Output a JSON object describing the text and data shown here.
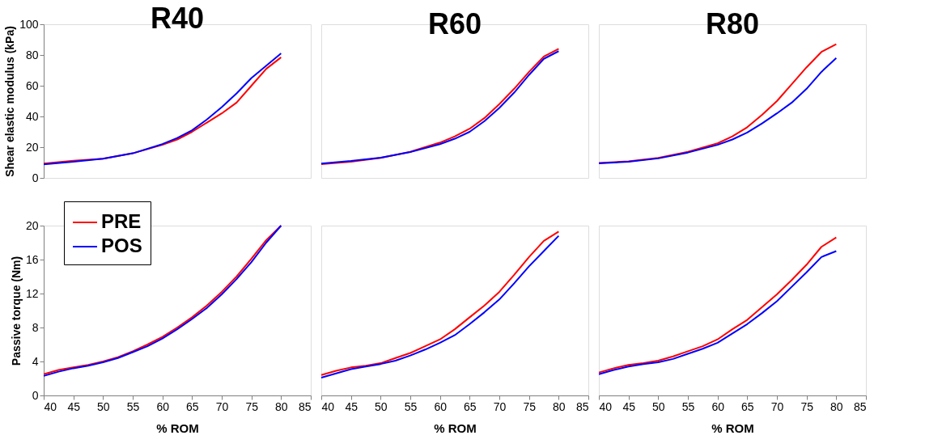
{
  "chart_data": [
    {
      "type": "line",
      "title": "R40",
      "ylabel": "Shear elastic modulus (kPa)",
      "x": [
        40,
        45,
        50,
        55,
        60,
        62.5,
        65,
        67.5,
        70,
        72.5,
        75,
        77.5,
        80
      ],
      "xlim": [
        40,
        85
      ],
      "ylim": [
        0,
        100
      ],
      "yticks": [
        0,
        20,
        40,
        60,
        80,
        100
      ],
      "tick_labels": "y",
      "series": [
        {
          "color": "#ff0000",
          "values": [
            9.4,
            11.2,
            12.5,
            16,
            21.5,
            25,
            30,
            36,
            42,
            49,
            60,
            71,
            78.5
          ]
        },
        {
          "color": "#0000ff",
          "values": [
            8.8,
            10.5,
            12.5,
            16,
            22,
            26,
            31,
            38,
            46,
            55,
            65,
            73,
            81
          ]
        }
      ]
    },
    {
      "type": "line",
      "title": "R60",
      "x": [
        40,
        45,
        50,
        55,
        60,
        62.5,
        65,
        67.5,
        70,
        72.5,
        75,
        77.5,
        80
      ],
      "xlim": [
        40,
        85
      ],
      "ylim": [
        0,
        100
      ],
      "tick_labels": false,
      "series": [
        {
          "color": "#ff0000",
          "values": [
            9,
            10.5,
            13,
            17,
            23,
            27,
            32,
            39,
            48,
            58,
            69,
            79,
            84
          ]
        },
        {
          "color": "#0000ff",
          "values": [
            9.3,
            11,
            13.2,
            16.8,
            22,
            25.5,
            30,
            37,
            45.5,
            55.5,
            67,
            77.5,
            82.5
          ]
        }
      ]
    },
    {
      "type": "line",
      "title": "R80",
      "x": [
        40,
        45,
        50,
        55,
        60,
        62.5,
        65,
        67.5,
        70,
        72.5,
        75,
        77.5,
        80
      ],
      "xlim": [
        40,
        85
      ],
      "ylim": [
        0,
        100
      ],
      "tick_labels": false,
      "series": [
        {
          "color": "#ff0000",
          "values": [
            9.8,
            10.8,
            13,
            17,
            22.5,
            27,
            33,
            41,
            50,
            61,
            72,
            82,
            87
          ]
        },
        {
          "color": "#0000ff",
          "values": [
            9.5,
            10.5,
            12.7,
            16.5,
            21.5,
            25,
            29.5,
            35.5,
            42,
            49,
            58,
            69,
            78
          ]
        }
      ]
    },
    {
      "type": "line",
      "xlabel": "% ROM",
      "ylabel": "Passive torque (Nm)",
      "legend": "top left",
      "x": [
        40,
        42.5,
        45,
        47.5,
        50,
        52.5,
        55,
        57.5,
        60,
        62.5,
        65,
        67.5,
        70,
        72.5,
        75,
        77.5,
        80
      ],
      "xlim": [
        40,
        85
      ],
      "xticks": [
        40,
        45,
        50,
        55,
        60,
        65,
        70,
        75,
        80,
        85
      ],
      "ylim": [
        0,
        20
      ],
      "yticks": [
        0,
        4,
        8,
        12,
        16,
        20
      ],
      "series": [
        {
          "name": "PRE",
          "color": "#ff0000",
          "values": [
            2.5,
            3.0,
            3.3,
            3.6,
            4.0,
            4.5,
            5.2,
            6.0,
            6.9,
            8.0,
            9.2,
            10.6,
            12.2,
            14.0,
            16.1,
            18.3,
            20
          ]
        },
        {
          "name": "POS",
          "color": "#0000ff",
          "values": [
            2.3,
            2.8,
            3.2,
            3.5,
            3.9,
            4.4,
            5.1,
            5.8,
            6.7,
            7.8,
            9.0,
            10.3,
            11.9,
            13.7,
            15.7,
            18.0,
            20
          ]
        }
      ]
    },
    {
      "type": "line",
      "xlabel": "% ROM",
      "x": [
        40,
        42.5,
        45,
        47.5,
        50,
        52.5,
        55,
        57.5,
        60,
        62.5,
        65,
        67.5,
        70,
        72.5,
        75,
        77.5,
        80
      ],
      "xlim": [
        40,
        85
      ],
      "xticks": [
        40,
        45,
        50,
        55,
        60,
        65,
        70,
        75,
        80,
        85
      ],
      "ylim": [
        0,
        20
      ],
      "tick_labels": "x",
      "series": [
        {
          "color": "#ff0000",
          "values": [
            2.4,
            2.9,
            3.3,
            3.5,
            3.8,
            4.4,
            5.0,
            5.8,
            6.6,
            7.8,
            9.2,
            10.6,
            12.2,
            14.2,
            16.3,
            18.2,
            19.3
          ]
        },
        {
          "color": "#0000ff",
          "values": [
            2.1,
            2.6,
            3.1,
            3.4,
            3.7,
            4.1,
            4.7,
            5.4,
            6.2,
            7.1,
            8.4,
            9.8,
            11.3,
            13.2,
            15.2,
            17.0,
            18.8
          ]
        }
      ]
    },
    {
      "type": "line",
      "xlabel": "% ROM",
      "x": [
        40,
        42.5,
        45,
        47.5,
        50,
        52.5,
        55,
        57.5,
        60,
        62.5,
        65,
        67.5,
        70,
        72.5,
        75,
        77.5,
        80
      ],
      "xlim": [
        40,
        85
      ],
      "xticks": [
        40,
        45,
        50,
        55,
        60,
        65,
        70,
        75,
        80,
        85
      ],
      "ylim": [
        0,
        20
      ],
      "tick_labels": "x",
      "series": [
        {
          "color": "#ff0000",
          "values": [
            2.7,
            3.2,
            3.6,
            3.8,
            4.1,
            4.6,
            5.2,
            5.8,
            6.6,
            7.8,
            8.9,
            10.4,
            11.9,
            13.6,
            15.4,
            17.5,
            18.6
          ]
        },
        {
          "color": "#0000ff",
          "values": [
            2.5,
            3.0,
            3.4,
            3.7,
            3.9,
            4.3,
            4.9,
            5.5,
            6.2,
            7.3,
            8.4,
            9.7,
            11.1,
            12.8,
            14.5,
            16.3,
            17.0
          ]
        }
      ]
    }
  ]
}
